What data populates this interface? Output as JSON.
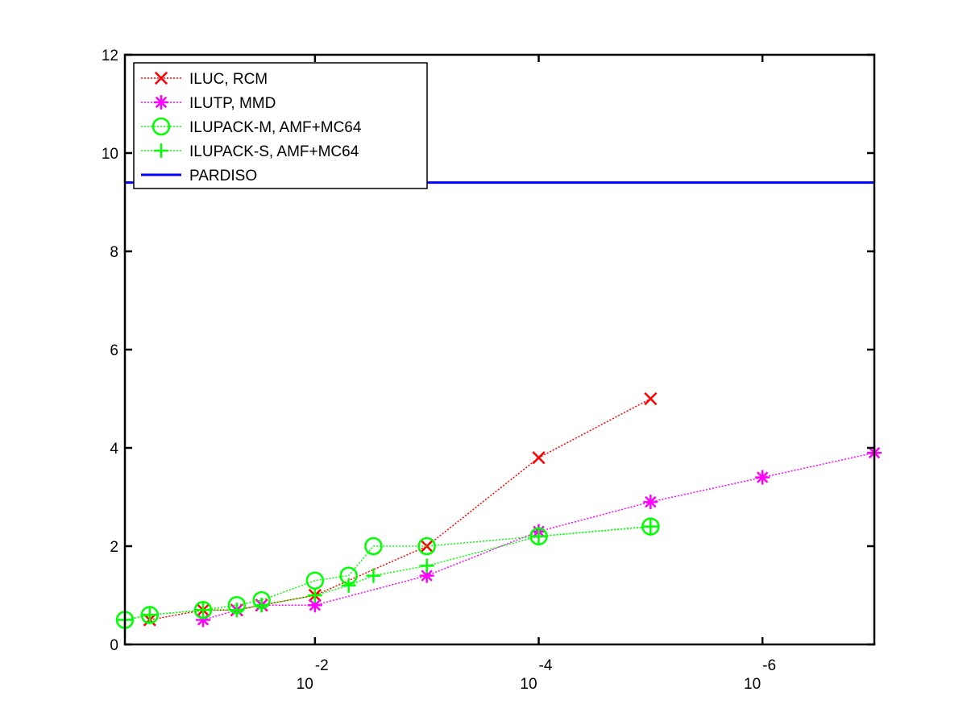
{
  "chart_data": {
    "type": "line",
    "title": "",
    "xlabel": "",
    "ylabel": "",
    "x_scale": "log-reversed",
    "xlim": [
      1e-07,
      0.5
    ],
    "ylim": [
      0,
      12
    ],
    "y_ticks": [
      0,
      2,
      4,
      6,
      8,
      10,
      12
    ],
    "x_ticks": [
      {
        "value": 0.01,
        "base": "10",
        "exp": "-2"
      },
      {
        "value": 0.0001,
        "base": "10",
        "exp": "-4"
      },
      {
        "value": 1e-06,
        "base": "10",
        "exp": "-6"
      }
    ],
    "grid": false,
    "legend_position": "top-left",
    "series": [
      {
        "name": "ILUC, RCM",
        "color": "#ff0000",
        "marker": "x",
        "line": "dotted",
        "x": [
          0.3,
          0.1,
          0.05,
          0.03,
          0.01,
          0.001,
          0.0001,
          1e-05
        ],
        "y": [
          0.5,
          0.7,
          0.7,
          0.8,
          1.0,
          2.0,
          3.8,
          5.0
        ]
      },
      {
        "name": "ILUTP, MMD",
        "color": "#ff00ff",
        "marker": "asterisk",
        "line": "dotted",
        "x": [
          0.1,
          0.05,
          0.03,
          0.01,
          0.001,
          0.0001,
          1e-05,
          1e-06,
          1e-07
        ],
        "y": [
          0.5,
          0.7,
          0.8,
          0.8,
          1.4,
          2.3,
          2.9,
          3.4,
          3.9
        ]
      },
      {
        "name": "ILUPACK-M, AMF+MC64",
        "color": "#00ff00",
        "marker": "circle",
        "line": "dotted",
        "x": [
          0.5,
          0.3,
          0.1,
          0.05,
          0.03,
          0.01,
          0.005,
          0.003,
          0.001,
          0.0001,
          1e-05
        ],
        "y": [
          0.5,
          0.6,
          0.7,
          0.8,
          0.9,
          1.3,
          1.4,
          2.0,
          2.0,
          2.2,
          2.4
        ]
      },
      {
        "name": "ILUPACK-S, AMF+MC64",
        "color": "#00ff00",
        "marker": "plus",
        "line": "dotted",
        "x": [
          0.5,
          0.3,
          0.1,
          0.05,
          0.03,
          0.01,
          0.005,
          0.003,
          0.001,
          0.0001,
          1e-05
        ],
        "y": [
          0.5,
          0.6,
          0.7,
          0.7,
          0.8,
          1.0,
          1.2,
          1.4,
          1.6,
          2.2,
          2.4
        ]
      },
      {
        "name": "PARDISO",
        "color": "#0000ff",
        "marker": "none",
        "line": "solid",
        "x": [
          0.5,
          1e-07
        ],
        "y": [
          9.4,
          9.4
        ]
      }
    ]
  }
}
